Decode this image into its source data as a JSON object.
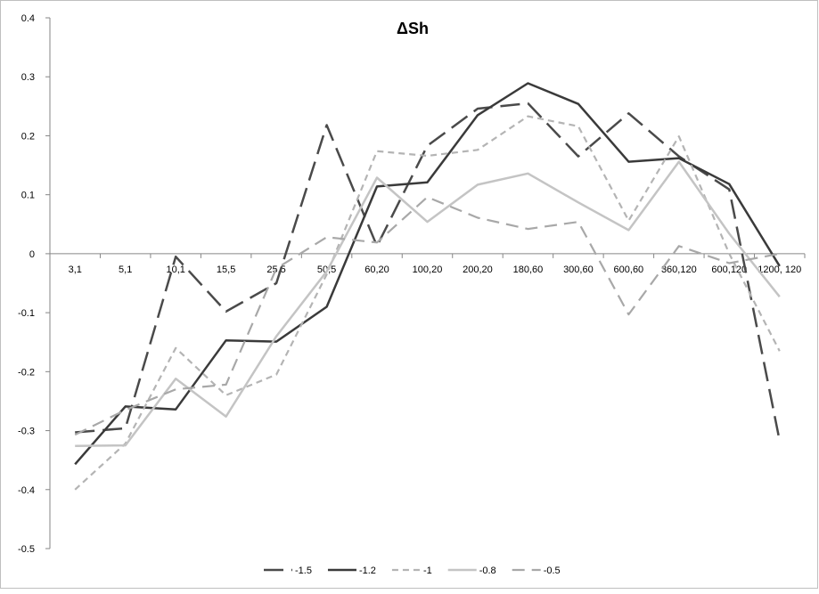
{
  "chart_data": {
    "type": "line",
    "title": "ΔSh",
    "xlabel": "",
    "ylabel": "",
    "ylim": [
      -0.5,
      0.4
    ],
    "y_tick_step": 0.1,
    "y_tick_labels": [
      "0.4",
      "0.3",
      "0.2",
      "0.1",
      "0",
      "-0.1",
      "-0.2",
      "-0.3",
      "-0.4",
      "-0.5"
    ],
    "grid": false,
    "legend_position": "bottom",
    "categories": [
      "3,1",
      "5,1",
      "10,1",
      "15,5",
      "25,5",
      "50,5",
      "60,20",
      "100,20",
      "200,20",
      "180,60",
      "300,60",
      "600,60",
      "360,120",
      "600,120",
      "1200, 120"
    ],
    "series": [
      {
        "name": "-1.5",
        "color": "#4a4a4a",
        "dash": "long-dash",
        "width": 2.5,
        "values": [
          -0.303,
          -0.296,
          -0.005,
          -0.098,
          -0.05,
          0.218,
          0.013,
          0.183,
          0.246,
          0.255,
          0.165,
          0.238,
          0.165,
          0.109,
          -0.317
        ]
      },
      {
        "name": "-1.2",
        "color": "#3a3a3a",
        "dash": "solid",
        "width": 2.5,
        "values": [
          -0.357,
          -0.259,
          -0.264,
          -0.147,
          -0.149,
          -0.09,
          0.114,
          0.121,
          0.235,
          0.289,
          0.254,
          0.156,
          0.162,
          0.118,
          -0.021
        ]
      },
      {
        "name": "-1",
        "color": "#b4b4b4",
        "dash": "short-dash",
        "width": 2.2,
        "values": [
          -0.4,
          -0.322,
          -0.16,
          -0.24,
          -0.205,
          -0.035,
          0.174,
          0.166,
          0.176,
          0.233,
          0.216,
          0.056,
          0.199,
          0.0,
          -0.165
        ]
      },
      {
        "name": "-0.8",
        "color": "#c4c4c4",
        "dash": "solid",
        "width": 2.5,
        "values": [
          -0.326,
          -0.325,
          -0.212,
          -0.276,
          -0.14,
          -0.03,
          0.129,
          0.054,
          0.117,
          0.136,
          0.087,
          0.04,
          0.156,
          0.034,
          -0.073
        ]
      },
      {
        "name": "-0.5",
        "color": "#a8a8a8",
        "dash": "medium-dash",
        "width": 2.2,
        "values": [
          -0.307,
          -0.265,
          -0.23,
          -0.222,
          -0.025,
          0.028,
          0.019,
          0.096,
          0.061,
          0.042,
          0.054,
          -0.103,
          0.013,
          -0.016,
          0.0
        ]
      }
    ]
  }
}
